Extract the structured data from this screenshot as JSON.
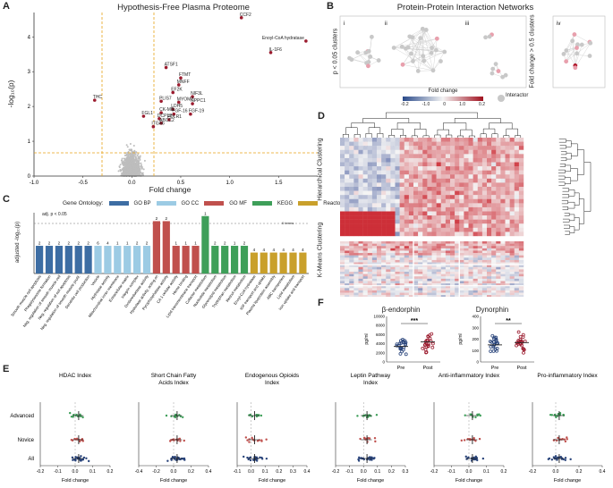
{
  "panels": {
    "A": {
      "letter": "A",
      "title": "Hypothesis-Free Plasma Proteome",
      "xlabel": "Fold change",
      "ylabel": "-log₁₀(p)",
      "xticks": [
        "-1.0",
        "-0.5",
        "0.0",
        "0.5",
        "1.0",
        "1.5"
      ],
      "yticks": [
        "0",
        "1",
        "2",
        "3",
        "4"
      ],
      "labels": [
        "CCF2",
        "Enoyl-CoA hydratase",
        "IL-1F6",
        "ATSF1",
        "FTMT",
        "MNFF",
        "EF2K",
        "NIF3L",
        "PLIS7",
        "MYOM2",
        "NPPC1",
        "LDH5",
        "CK-MB",
        "FGF-16",
        "FGF-19",
        "FGL1",
        "DCP1B",
        "FOLR1",
        "ABCC2",
        "ITGA6",
        "THC"
      ]
    },
    "B": {
      "letter": "B",
      "title": "Protein-Protein Interaction Networks",
      "ylabel_left": "p < 0.05 clusters",
      "ylabel_right": "Fold change > 0.5 clusters",
      "roman": [
        "i",
        "ii",
        "iii",
        "iv"
      ],
      "legend_title": "Fold change",
      "legend_ticks": [
        "-0.2",
        "-1.0",
        "0",
        "1.0",
        "0.2"
      ],
      "interactor": "Interactor"
    },
    "C": {
      "letter": "C",
      "legend_title": "Gene Ontology:",
      "legend": [
        "GO BP",
        "GO CC",
        "GO MF",
        "KEGG",
        "Reactome"
      ],
      "ylabel": "adjusted -log₁₀(p)",
      "threshold": "adj. p < 0.05",
      "threshold2": "6 terms",
      "counts": [
        "2",
        "2",
        "2",
        "2",
        "2",
        "2",
        "6",
        "4",
        "1",
        "1",
        "2",
        "2",
        "2",
        "2",
        "1",
        "1",
        "1",
        "1",
        "2",
        "2",
        "1",
        "2",
        "4",
        "4",
        "4",
        "4",
        "4",
        "4"
      ],
      "categories": [
        "Smooth muscle cell apoptosis",
        "Phagolysosome formation",
        "Neg. regulation of smooth muscle cell",
        "Neg. regulation of cell apoptosis",
        "Neg. regulation of smooth muscle prolif.",
        "Dendritic cell production",
        "Vesicle",
        "Hydrolase activity",
        "Mitochondrial inner membrane",
        "Extracellular matrix",
        "Integrin complex",
        "Oxidoreductase activity",
        "Hydrolase activity, acting on",
        "Pyrophosphatase activity",
        "CA 1 cellular activity",
        "Heme binding",
        "Lipid transmembrane transport",
        "Cofactor metabolism",
        "Nucleotide metabolism",
        "Glycerolipid metabolism",
        "Tryptophan metabolism",
        "Retinol metabolism",
        "Enoyl-CoA hydratase",
        "IGF transport and uptake",
        "Plasma lipoprotein assembly",
        "ABC transporters",
        "Lipid metabolism",
        "Iron uptake and transport"
      ]
    },
    "D": {
      "letter": "D",
      "ylabel_top": "Hierarchical Clustering",
      "ylabel_bottom": "K-Means Clustering"
    },
    "E": {
      "letter": "E",
      "rows": [
        "Advanced",
        "Novice",
        "All"
      ],
      "xlabel": "Fold change",
      "subplots": [
        {
          "title": "HDAC Index",
          "ticks": [
            "-0.2",
            "-0.1",
            "0.0",
            "0.1",
            "0.2"
          ]
        },
        {
          "title": "Short Chain Fatty Acids Index",
          "ticks": [
            "-0.4",
            "-0.2",
            "0.0",
            "0.2",
            "0.4"
          ]
        },
        {
          "title": "Endogenous Opioids Index",
          "ticks": [
            "-0.1",
            "0.0",
            "0.1",
            "0.2",
            "0.3",
            "0.4"
          ]
        },
        {
          "title": "Leptin Pathway Index",
          "ticks": [
            "-0.2",
            "-0.1",
            "0.0",
            "0.1",
            "0.2",
            "0.3"
          ]
        },
        {
          "title": "Anti-inflammatory Index",
          "ticks": [
            "-0.2",
            "-0.1",
            "0.0",
            "0.1",
            "0.2"
          ]
        },
        {
          "title": "Pro-inflammatory Index",
          "ticks": [
            "-0.2",
            "0.0",
            "0.2",
            "0.4"
          ]
        }
      ]
    },
    "F": {
      "letter": "F",
      "plots": [
        {
          "title": "β-endorphin",
          "ylabel": "pg/ml",
          "yticks": [
            "0",
            "2000",
            "4000",
            "6000",
            "8000",
            "10000"
          ],
          "sig": "***",
          "groups": [
            "Pre",
            "Post"
          ]
        },
        {
          "title": "Dynorphin",
          "ylabel": "pg/ml",
          "yticks": [
            "0",
            "100",
            "200",
            "300",
            "400"
          ],
          "sig": "**",
          "groups": [
            "Pre",
            "Post"
          ]
        }
      ]
    }
  },
  "colors": {
    "red_dot": "#9b1b2e",
    "grey_dot": "#bdbdbd",
    "dashed": "#e7a21a",
    "go_bp": "#3d6da3",
    "go_cc": "#9ccbe4",
    "go_mf": "#c0504d",
    "kegg": "#3e9f59",
    "reactome": "#c9a02b",
    "blue_dot": "#28437a"
  },
  "chart_data": [
    {
      "type": "scatter",
      "title": "Hypothesis-Free Plasma Proteome",
      "xlabel": "Fold change",
      "ylabel": "-log10(p)",
      "xlim": [
        -1.0,
        1.9
      ],
      "ylim": [
        0,
        4.7
      ],
      "thresholds": {
        "x": [
          -0.25,
          0.25
        ],
        "y": 1.3
      },
      "highlighted": [
        {
          "label": "CCF2",
          "x": 1.12,
          "y": 4.55
        },
        {
          "label": "Enoyl-CoA hydratase",
          "x": 1.78,
          "y": 3.88
        },
        {
          "label": "IL-1F6",
          "x": 1.42,
          "y": 3.55
        },
        {
          "label": "ATSF1",
          "x": 0.35,
          "y": 3.12
        },
        {
          "label": "FTMT",
          "x": 0.5,
          "y": 2.82
        },
        {
          "label": "MNFF",
          "x": 0.48,
          "y": 2.62
        },
        {
          "label": "EF2K",
          "x": 0.42,
          "y": 2.4
        },
        {
          "label": "NIF3L",
          "x": 0.62,
          "y": 2.28
        },
        {
          "label": "PLIS7",
          "x": 0.3,
          "y": 2.15
        },
        {
          "label": "MYOM2",
          "x": 0.48,
          "y": 2.12
        },
        {
          "label": "NPPC1",
          "x": 0.62,
          "y": 2.08
        },
        {
          "label": "LDH5",
          "x": 0.42,
          "y": 1.92
        },
        {
          "label": "CK-MB",
          "x": 0.3,
          "y": 1.82
        },
        {
          "label": "FGF-16",
          "x": 0.43,
          "y": 1.78
        },
        {
          "label": "FGF-19",
          "x": 0.6,
          "y": 1.78
        },
        {
          "label": "FGL1",
          "x": 0.12,
          "y": 1.72
        },
        {
          "label": "DCP1B",
          "x": 0.28,
          "y": 1.65
        },
        {
          "label": "FOLR1",
          "x": 0.38,
          "y": 1.62
        },
        {
          "label": "ABCC2",
          "x": 0.3,
          "y": 1.52
        },
        {
          "label": "ITGA6",
          "x": 0.22,
          "y": 1.42
        },
        {
          "label": "THC",
          "x": -0.38,
          "y": 2.18
        }
      ]
    },
    {
      "type": "bar",
      "title": "Gene Ontology enrichment",
      "ylabel": "adjusted -log10(p)",
      "ylim": [
        0,
        1.8
      ],
      "threshold": 1.3,
      "series": [
        {
          "name": "GO BP",
          "values": [
            0.82,
            0.82,
            0.82,
            0.82,
            0.82,
            0.82
          ]
        },
        {
          "name": "GO CC",
          "values": [
            0.82,
            0.82,
            0.82,
            0.82,
            0.82,
            0.82
          ]
        },
        {
          "name": "GO MF",
          "values": [
            1.55,
            1.55,
            0.82,
            0.82,
            0.82
          ]
        },
        {
          "name": "KEGG",
          "values": [
            1.7,
            0.82,
            0.82,
            0.82,
            0.82
          ]
        },
        {
          "name": "Reactome",
          "values": [
            0.62,
            0.62,
            0.62,
            0.62,
            0.62,
            0.62
          ]
        }
      ]
    },
    {
      "type": "scatter",
      "title": "β-endorphin",
      "ylabel": "pg/ml",
      "ylim": [
        0,
        10000
      ],
      "categories": [
        "Pre",
        "Post"
      ],
      "means": [
        3400,
        4400
      ]
    },
    {
      "type": "scatter",
      "title": "Dynorphin",
      "ylabel": "pg/ml",
      "ylim": [
        0,
        400
      ],
      "categories": [
        "Pre",
        "Post"
      ],
      "means": [
        150,
        170
      ]
    }
  ]
}
